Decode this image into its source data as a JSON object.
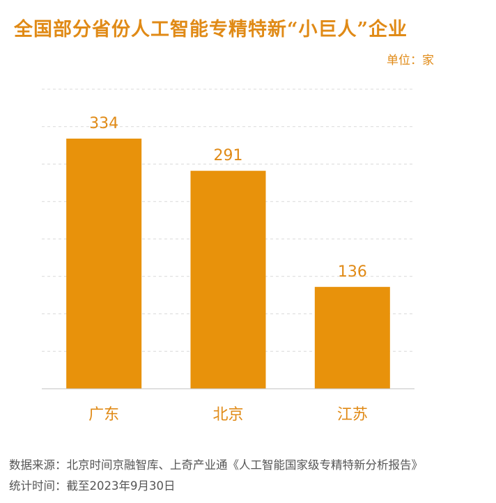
{
  "header": {
    "title": "全国部分省份人工智能专精特新“小巨人”企业",
    "unit": "单位：家"
  },
  "colors": {
    "accent": "#e08a16",
    "bar": "#e8920b",
    "grid": "#d9d9d9",
    "footer_text": "#555555"
  },
  "chart_data": {
    "type": "bar",
    "categories": [
      "广东",
      "北京",
      "江苏"
    ],
    "values": [
      334,
      291,
      136
    ],
    "title": "全国部分省份人工智能专精特新“小巨人”企业",
    "ylabel": "单位：家",
    "ylim": [
      0,
      400
    ],
    "grid": true,
    "data_labels": true
  },
  "footer": {
    "source": "数据来源：北京时间京融智库、上奇产业通《人工智能国家级专精特新分析报告》",
    "time": "统计时间：截至2023年9月30日"
  }
}
